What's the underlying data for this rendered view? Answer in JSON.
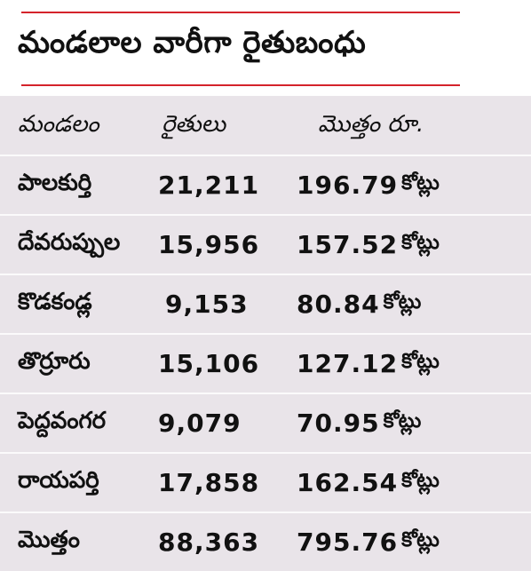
{
  "title": "మండలాల వారీగా రైతుబంధు",
  "headers": {
    "mandal": "మండలం",
    "farmers": "రైతులు",
    "total": "మొత్తం రూ."
  },
  "rows": [
    {
      "mandal": "పాలకుర్తి",
      "farmers": "21,211",
      "amount": "196.79",
      "unit": "కోట్లు"
    },
    {
      "mandal": "దేవరుప్పుల",
      "farmers": "15,956",
      "amount": "157.52",
      "unit": "కోట్లు"
    },
    {
      "mandal": "కొడకండ్ల",
      "farmers": "9,153",
      "amount": "80.84",
      "unit": "కోట్లు"
    },
    {
      "mandal": "తొర్రూరు",
      "farmers": "15,106",
      "amount": "127.12",
      "unit": "కోట్లు"
    },
    {
      "mandal": "పెద్దవంగర",
      "farmers": "9,079",
      "amount": "70.95",
      "unit": "కోట్లు"
    },
    {
      "mandal": "రాయపర్తి",
      "farmers": "17,858",
      "amount": "162.54",
      "unit": "కోట్లు"
    },
    {
      "mandal": "మొత్తం",
      "farmers": "88,363",
      "amount": "795.76",
      "unit": "కోట్లు"
    }
  ],
  "colors": {
    "rule": "#d4232b",
    "background": "#e9e4e9",
    "header_bg": "#ffffff"
  }
}
